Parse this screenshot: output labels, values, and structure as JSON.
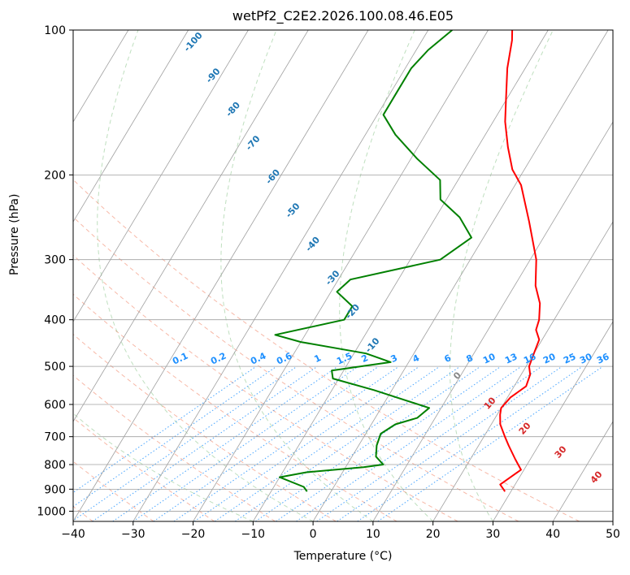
{
  "chart_data": {
    "type": "line",
    "title": "wetPf2_C2E2.2026.100.08.46.E05",
    "xlabel": "Temperature (°C)",
    "ylabel": "Pressure (hPa)",
    "xlim": [
      -40,
      50
    ],
    "ylim": [
      1050,
      100
    ],
    "x_ticks": [
      -40,
      -30,
      -20,
      -10,
      0,
      10,
      20,
      30,
      40,
      50
    ],
    "y_ticks": [
      100,
      200,
      300,
      400,
      500,
      600,
      700,
      800,
      900,
      1000
    ],
    "grid": true,
    "series": [
      {
        "name": "temperature",
        "color": "#ff0000",
        "points": [
          [
            29,
            910
          ],
          [
            27.5,
            880
          ],
          [
            28.5,
            850
          ],
          [
            29.5,
            820
          ],
          [
            28.5,
            800
          ],
          [
            27.5,
            780
          ],
          [
            25,
            730
          ],
          [
            23.5,
            700
          ],
          [
            21.5,
            660
          ],
          [
            20.5,
            630
          ],
          [
            20,
            610
          ],
          [
            20.5,
            580
          ],
          [
            22,
            550
          ],
          [
            21.5,
            520
          ],
          [
            20.5,
            500
          ],
          [
            20,
            470
          ],
          [
            19.5,
            440
          ],
          [
            18,
            420
          ],
          [
            17.5,
            400
          ],
          [
            16,
            370
          ],
          [
            13.5,
            340
          ],
          [
            11,
            300
          ],
          [
            6,
            250
          ],
          [
            1,
            210
          ],
          [
            -2,
            195
          ],
          [
            -5,
            175
          ],
          [
            -8,
            155
          ],
          [
            -10,
            140
          ],
          [
            -13,
            120
          ],
          [
            -15,
            105
          ],
          [
            -16,
            100
          ]
        ]
      },
      {
        "name": "dewpoint",
        "color": "#008000",
        "points": [
          [
            -4,
            910
          ],
          [
            -5,
            890
          ],
          [
            -10,
            850
          ],
          [
            -6,
            830
          ],
          [
            3,
            810
          ],
          [
            6,
            800
          ],
          [
            4,
            770
          ],
          [
            3,
            730
          ],
          [
            2.5,
            690
          ],
          [
            4,
            660
          ],
          [
            7,
            640
          ],
          [
            8,
            610
          ],
          [
            -3,
            560
          ],
          [
            -11,
            530
          ],
          [
            -12,
            510
          ],
          [
            -3,
            490
          ],
          [
            -8,
            470
          ],
          [
            -20,
            445
          ],
          [
            -25,
            430
          ],
          [
            -15,
            400
          ],
          [
            -15,
            375
          ],
          [
            -19,
            350
          ],
          [
            -18,
            330
          ],
          [
            -5,
            300
          ],
          [
            -2,
            270
          ],
          [
            -6,
            245
          ],
          [
            -11,
            225
          ],
          [
            -13,
            205
          ],
          [
            -19,
            185
          ],
          [
            -25,
            165
          ],
          [
            -29,
            150
          ],
          [
            -29,
            135
          ],
          [
            -29,
            120
          ],
          [
            -28,
            110
          ],
          [
            -26,
            100
          ]
        ]
      }
    ],
    "dry_adiabats": [
      -100,
      -90,
      -80,
      -70,
      -60,
      -50,
      -40,
      -30,
      -20,
      -10,
      0,
      10,
      20,
      30,
      40
    ],
    "dry_adiabat_labels": [
      "-100",
      "-90",
      "-80",
      "-70",
      "-60",
      "-50",
      "-40",
      "-30",
      "-20",
      "-10"
    ],
    "moist_adiabat_labels": [
      "0",
      "10",
      "20",
      "30",
      "40"
    ],
    "mixing_ratios": [
      "0.1",
      "0.2",
      "0.4",
      "0.6",
      "1",
      "1.5",
      "2",
      "3",
      "4",
      "6",
      "8",
      "10",
      "13",
      "16",
      "20",
      "25",
      "30",
      "36"
    ],
    "colors": {
      "isotherm": "#a0a0a0",
      "dry_adiabat": "#f08060",
      "moist_adiabat": "#60b060",
      "mixing_ratio": "#1e90ff",
      "label_dry": "#1f77b4",
      "label_moist": "#d62728"
    }
  }
}
